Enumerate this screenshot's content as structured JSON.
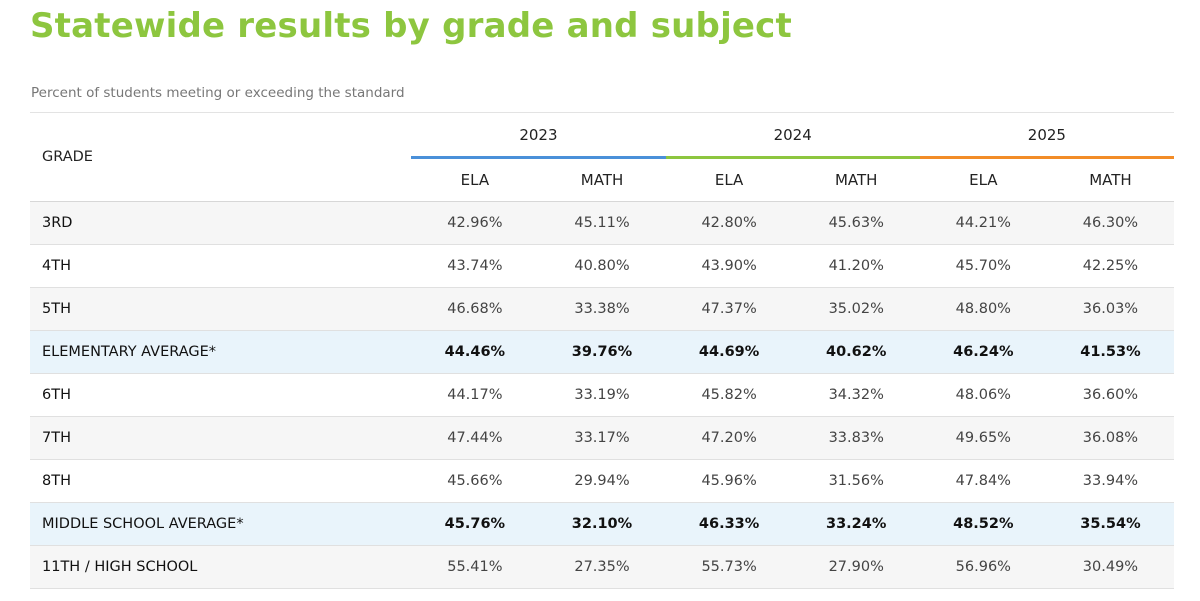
{
  "page": {
    "title": "Statewide results by grade and subject",
    "subtitle": "Percent of students meeting or exceeding the standard"
  },
  "colors": {
    "title": "#8dc63f",
    "year_2023": "#4a90d9",
    "year_2024": "#8dc63f",
    "year_2025": "#f28c28",
    "average_row_bg": "#e9f4fb"
  },
  "table": {
    "grade_header": "GRADE",
    "years": [
      "2023",
      "2024",
      "2025"
    ],
    "subjects": [
      "ELA",
      "MATH"
    ],
    "rows": [
      {
        "grade": "3RD",
        "average": false,
        "values": [
          "42.96%",
          "45.11%",
          "42.80%",
          "45.63%",
          "44.21%",
          "46.30%"
        ]
      },
      {
        "grade": "4TH",
        "average": false,
        "values": [
          "43.74%",
          "40.80%",
          "43.90%",
          "41.20%",
          "45.70%",
          "42.25%"
        ]
      },
      {
        "grade": "5TH",
        "average": false,
        "values": [
          "46.68%",
          "33.38%",
          "47.37%",
          "35.02%",
          "48.80%",
          "36.03%"
        ]
      },
      {
        "grade": "ELEMENTARY AVERAGE*",
        "average": true,
        "values": [
          "44.46%",
          "39.76%",
          "44.69%",
          "40.62%",
          "46.24%",
          "41.53%"
        ]
      },
      {
        "grade": "6TH",
        "average": false,
        "values": [
          "44.17%",
          "33.19%",
          "45.82%",
          "34.32%",
          "48.06%",
          "36.60%"
        ]
      },
      {
        "grade": "7TH",
        "average": false,
        "values": [
          "47.44%",
          "33.17%",
          "47.20%",
          "33.83%",
          "49.65%",
          "36.08%"
        ]
      },
      {
        "grade": "8TH",
        "average": false,
        "values": [
          "45.66%",
          "29.94%",
          "45.96%",
          "31.56%",
          "47.84%",
          "33.94%"
        ]
      },
      {
        "grade": "MIDDLE SCHOOL AVERAGE*",
        "average": true,
        "values": [
          "45.76%",
          "32.10%",
          "46.33%",
          "33.24%",
          "48.52%",
          "35.54%"
        ]
      },
      {
        "grade": "11TH / HIGH SCHOOL",
        "average": false,
        "values": [
          "55.41%",
          "27.35%",
          "55.73%",
          "27.90%",
          "56.96%",
          "30.49%"
        ]
      }
    ]
  }
}
